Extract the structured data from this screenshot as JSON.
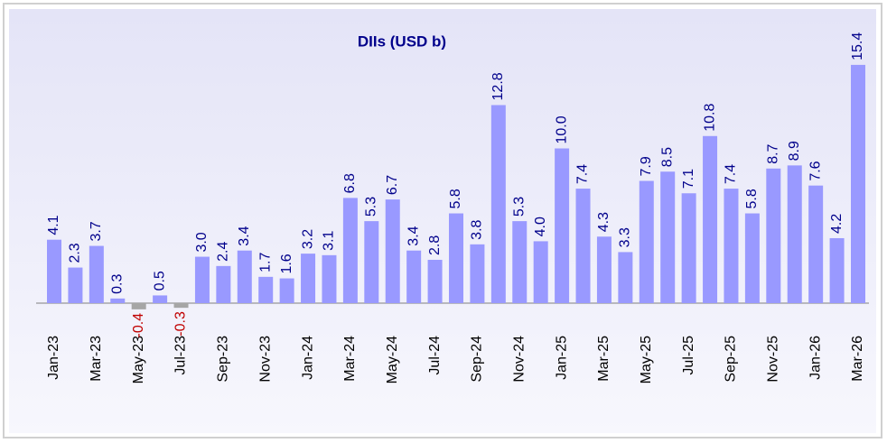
{
  "chart_data": {
    "type": "bar",
    "title": "DIIs (USD b)",
    "categories": [
      "Jan-23",
      null,
      "Mar-23",
      null,
      "May-23",
      null,
      "Jul-23",
      null,
      "Sep-23",
      null,
      "Nov-23",
      null,
      "Jan-24",
      null,
      "Mar-24",
      null,
      "May-24",
      null,
      "Jul-24",
      null,
      "Sep-24",
      null,
      "Nov-24",
      null,
      "Jan-25",
      null,
      "Mar-25",
      null,
      "May-25",
      null,
      "Jul-25",
      null,
      "Sep-25",
      null,
      "Nov-25",
      null,
      "Jan-26",
      null,
      "Mar-26"
    ],
    "values": [
      4.1,
      2.3,
      3.7,
      0.3,
      -0.4,
      0.5,
      -0.3,
      3.0,
      2.4,
      3.4,
      1.7,
      1.6,
      3.2,
      3.1,
      6.8,
      5.3,
      6.7,
      3.4,
      2.8,
      5.8,
      3.8,
      12.8,
      5.3,
      4.0,
      10.0,
      7.4,
      4.3,
      3.3,
      7.9,
      8.5,
      7.1,
      10.8,
      7.4,
      5.8,
      8.7,
      8.9,
      7.6,
      4.2,
      15.4
    ],
    "value_labels": [
      "4.1",
      "2.3",
      "3.7",
      "0.3",
      "-0.4",
      "0.5",
      "-0.3",
      "3.0",
      "2.4",
      "3.4",
      "1.7",
      "1.6",
      "3.2",
      "3.1",
      "6.8",
      "5.3",
      "6.7",
      "3.4",
      "2.8",
      "5.8",
      "3.8",
      "12.8",
      "5.3",
      "4.0",
      "10.0",
      "7.4",
      "4.3",
      "3.3",
      "7.9",
      "8.5",
      "7.1",
      "10.8",
      "7.4",
      "5.8",
      "8.7",
      "8.9",
      "7.6",
      "4.2",
      "15.4"
    ],
    "color": "#9999ff",
    "negative_color": "#a6a6a6",
    "label_color": "#00008b",
    "negative_label_color": "#c00000",
    "ylim": [
      -2,
      16
    ]
  }
}
